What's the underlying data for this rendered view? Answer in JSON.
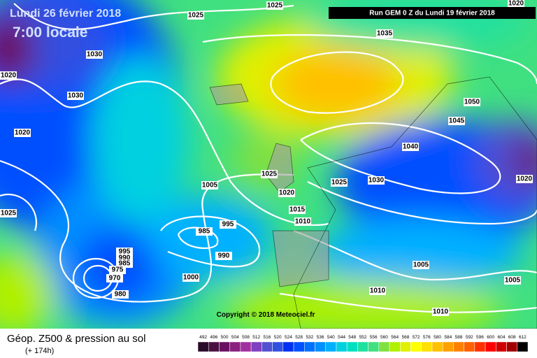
{
  "header": {
    "date": "Lundi 26 février 2018",
    "time": "7:00 locale",
    "run": "Run GEM 0 Z du Lundi 19 février 2018"
  },
  "copyright": "Copyright © 2018 Meteociel.fr",
  "footer": {
    "title": "Géop. Z500 & pression au sol",
    "lead": "(+ 174h)"
  },
  "isobar_labels": [
    "1025",
    "1025",
    "1020",
    "1035",
    "1030",
    "1020",
    "1030",
    "1050",
    "1045",
    "1020",
    "1040",
    "1025",
    "1025",
    "1030",
    "1020",
    "1005",
    "1020",
    "1015",
    "1025",
    "985",
    "995",
    "1010",
    "995",
    "990",
    "985",
    "975",
    "970",
    "990",
    "1005",
    "1000",
    "1005",
    "980",
    "1010",
    "1010"
  ],
  "scale": {
    "labels": [
      492,
      496,
      500,
      504,
      508,
      512,
      516,
      520,
      524,
      528,
      532,
      536,
      540,
      544,
      548,
      552,
      556,
      560,
      564,
      568,
      572,
      576,
      580,
      584,
      588,
      592,
      596,
      600,
      604,
      608,
      612
    ],
    "colors": [
      "#2a0a2a",
      "#4a1040",
      "#6a1060",
      "#8a2080",
      "#a030a0",
      "#8040c0",
      "#5050d0",
      "#3050e0",
      "#0030f0",
      "#0050ff",
      "#0070ff",
      "#0090ff",
      "#00b0ff",
      "#00d0e0",
      "#00e0c0",
      "#20e0a0",
      "#40e080",
      "#80e040",
      "#b0f000",
      "#e0f000",
      "#ffff00",
      "#ffe000",
      "#ffc000",
      "#ffa000",
      "#ff8000",
      "#ff6000",
      "#ff3000",
      "#ff0000",
      "#d00000",
      "#a00000",
      "#000000"
    ]
  }
}
